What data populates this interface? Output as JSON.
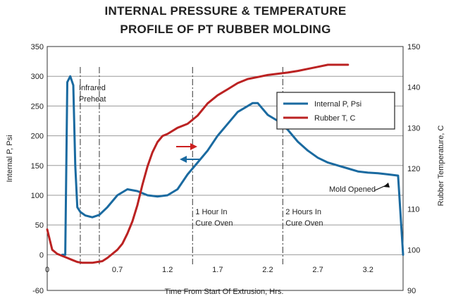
{
  "chart_data": {
    "type": "line",
    "title": "INTERNAL PRESSURE & TEMPERATURE",
    "subtitle": "PROFILE OF PT RUBBER MOLDING",
    "xlabel": "Time From Start Of Extrusion, Hrs.",
    "ylabel": "Internal P, Psi",
    "y2label": "Rubber Temperature, C",
    "xlim": [
      0,
      3.55
    ],
    "ylim": [
      -60,
      350
    ],
    "y2lim": [
      90,
      150
    ],
    "x_ticks": [
      0,
      0.7,
      1.2,
      1.7,
      2.2,
      2.7,
      3.2
    ],
    "x_tick_labels": [
      "0",
      "0.7",
      "1.2",
      "1.7",
      "2.2",
      "2.7",
      "3.2"
    ],
    "y_ticks": [
      -60,
      0,
      50,
      100,
      150,
      200,
      250,
      300,
      350
    ],
    "y_tick_labels": [
      "-60",
      "0",
      "50",
      "100",
      "150",
      "200",
      "250",
      "300",
      "350"
    ],
    "y2_ticks": [
      90,
      100,
      110,
      120,
      130,
      140,
      150
    ],
    "y2_tick_labels": [
      "90",
      "100",
      "110",
      "120",
      "130",
      "140",
      "150"
    ],
    "grid": "horizontal",
    "legend_position": "right",
    "series": [
      {
        "name": "Internal P, Psi",
        "axis": "left",
        "color": "#1a6aa0",
        "x": [
          0.15,
          0.18,
          0.2,
          0.23,
          0.26,
          0.28,
          0.3,
          0.33,
          0.38,
          0.45,
          0.52,
          0.6,
          0.7,
          0.8,
          0.9,
          1.0,
          1.1,
          1.2,
          1.3,
          1.4,
          1.5,
          1.6,
          1.7,
          1.8,
          1.9,
          2.0,
          2.05,
          2.1,
          2.2,
          2.3,
          2.4,
          2.5,
          2.6,
          2.7,
          2.8,
          2.9,
          3.0,
          3.1,
          3.2,
          3.3,
          3.4,
          3.5,
          3.55
        ],
        "y": [
          0,
          0,
          290,
          300,
          285,
          150,
          80,
          72,
          66,
          63,
          67,
          80,
          100,
          110,
          107,
          100,
          98,
          100,
          110,
          135,
          155,
          175,
          200,
          220,
          240,
          250,
          255,
          255,
          235,
          225,
          210,
          190,
          175,
          163,
          155,
          150,
          145,
          140,
          138,
          137,
          135,
          133,
          0
        ]
      },
      {
        "name": "Rubber T, C",
        "axis": "right",
        "color": "#bb2222",
        "x": [
          0,
          0.05,
          0.1,
          0.15,
          0.2,
          0.25,
          0.3,
          0.35,
          0.4,
          0.45,
          0.5,
          0.55,
          0.6,
          0.65,
          0.7,
          0.75,
          0.8,
          0.85,
          0.9,
          0.95,
          1.0,
          1.05,
          1.1,
          1.15,
          1.2,
          1.3,
          1.4,
          1.5,
          1.6,
          1.7,
          1.8,
          1.9,
          2.0,
          2.1,
          2.2,
          2.3,
          2.4,
          2.5,
          2.6,
          2.7,
          2.8,
          2.9,
          3.0
        ],
        "y": [
          105,
          100,
          99,
          98.5,
          98,
          97.5,
          97,
          96.8,
          96.8,
          96.8,
          97,
          97.2,
          98,
          99,
          100,
          101.5,
          104,
          107,
          111,
          116,
          120.5,
          124,
          126.5,
          128,
          128.5,
          130,
          131,
          133,
          136,
          138,
          139.5,
          141,
          142,
          142.5,
          143,
          143.3,
          143.6,
          144,
          144.5,
          145,
          145.5,
          145.5,
          145.5
        ]
      }
    ],
    "annotations": [
      {
        "text_lines": [
          "Infrared",
          "Preheat"
        ],
        "x": 0.33
      },
      {
        "text_lines": [
          "1 Hour In",
          "Cure Oven"
        ],
        "x": 1.45
      },
      {
        "text_lines": [
          "2 Hours In",
          "Cure Oven"
        ],
        "x": 2.35
      },
      {
        "text_lines": [
          "Mold Opened"
        ],
        "x": 3.1
      }
    ]
  }
}
